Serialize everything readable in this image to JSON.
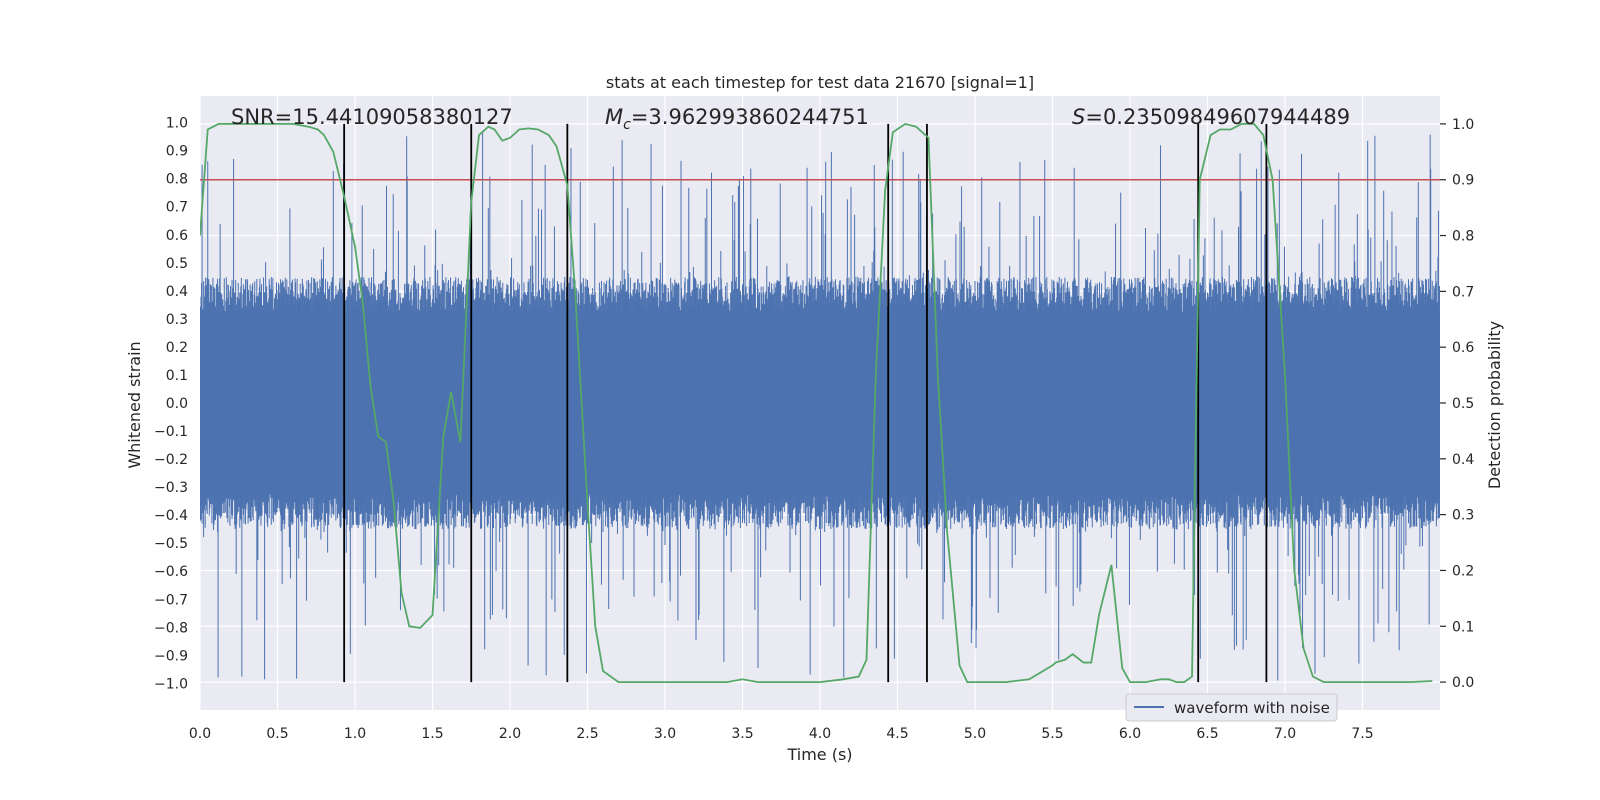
{
  "chart_data": {
    "type": "line",
    "title": "stats at each timestep for test data 21670 [signal=1]",
    "xlabel": "Time (s)",
    "ylabel": "Whitened strain",
    "y2label": "Detection probability",
    "xlim": [
      0,
      8
    ],
    "ylim": [
      -1.095,
      1.095
    ],
    "y2lim": [
      -0.05,
      1.05
    ],
    "x_ticks": [
      0.0,
      0.5,
      1.0,
      1.5,
      2.0,
      2.5,
      3.0,
      3.5,
      4.0,
      4.5,
      5.0,
      5.5,
      6.0,
      6.5,
      7.0,
      7.5
    ],
    "x_tick_labels": [
      "0.0",
      "0.5",
      "1.0",
      "1.5",
      "2.0",
      "2.5",
      "3.0",
      "3.5",
      "4.0",
      "4.5",
      "5.0",
      "5.5",
      "6.0",
      "6.5",
      "7.0",
      "7.5"
    ],
    "y_ticks": [
      -1.0,
      -0.9,
      -0.8,
      -0.7,
      -0.6,
      -0.5,
      -0.4,
      -0.3,
      -0.2,
      -0.1,
      0.0,
      0.1,
      0.2,
      0.3,
      0.4,
      0.5,
      0.6,
      0.7,
      0.8,
      0.9,
      1.0
    ],
    "y_tick_labels": [
      "−1.0",
      "−0.9",
      "−0.8",
      "−0.7",
      "−0.6",
      "−0.5",
      "−0.4",
      "−0.3",
      "−0.2",
      "−0.1",
      "0.0",
      "0.1",
      "0.2",
      "0.3",
      "0.4",
      "0.5",
      "0.6",
      "0.7",
      "0.8",
      "0.9",
      "1.0"
    ],
    "y2_ticks": [
      0.0,
      0.1,
      0.2,
      0.3,
      0.4,
      0.5,
      0.6,
      0.7,
      0.8,
      0.9,
      1.0
    ],
    "y2_tick_labels": [
      "0.0",
      "0.1",
      "0.2",
      "0.3",
      "0.4",
      "0.5",
      "0.6",
      "0.7",
      "0.8",
      "0.9",
      "1.0"
    ],
    "grid": true,
    "legend": {
      "entries": [
        "waveform with noise"
      ],
      "placement": "lower-right"
    },
    "annotations": {
      "snr": "SNR=15.44109058380127",
      "mc_symbol": "M",
      "mc_sub": "c",
      "mc_value": "=3.962993860244751",
      "s_symbol": "S",
      "s_value": "=0.23509849607944489"
    },
    "threshold": 0.9,
    "vertical_lines": [
      0.93,
      1.75,
      2.37,
      4.44,
      4.69,
      6.44,
      6.88
    ],
    "waveform": {
      "name": "waveform with noise",
      "duration": 8.0,
      "noise_envelope": [
        -0.45,
        0.45
      ],
      "spike_max": 0.97,
      "spike_min": -0.99
    },
    "probability": {
      "name": "detection probability",
      "x": [
        0.0,
        0.05,
        0.12,
        0.2,
        0.3,
        0.4,
        0.5,
        0.6,
        0.7,
        0.76,
        0.8,
        0.86,
        0.93,
        1.0,
        1.05,
        1.1,
        1.15,
        1.2,
        1.25,
        1.3,
        1.35,
        1.42,
        1.5,
        1.57,
        1.62,
        1.68,
        1.75,
        1.8,
        1.86,
        1.9,
        1.95,
        2.0,
        2.06,
        2.12,
        2.18,
        2.25,
        2.3,
        2.37,
        2.42,
        2.5,
        2.55,
        2.6,
        2.7,
        2.8,
        3.0,
        3.2,
        3.4,
        3.5,
        3.6,
        3.8,
        4.0,
        4.15,
        4.25,
        4.3,
        4.36,
        4.42,
        4.47,
        4.55,
        4.62,
        4.7,
        4.76,
        4.82,
        4.9,
        4.95,
        5.05,
        5.2,
        5.35,
        5.5,
        5.52,
        5.58,
        5.63,
        5.7,
        5.75,
        5.8,
        5.88,
        5.95,
        6.0,
        6.1,
        6.2,
        6.25,
        6.3,
        6.35,
        6.4,
        6.45,
        6.52,
        6.58,
        6.65,
        6.72,
        6.8,
        6.86,
        6.92,
        7.0,
        7.06,
        7.12,
        7.18,
        7.25,
        7.35,
        7.6,
        7.8,
        7.95
      ],
      "y": [
        0.8,
        0.99,
        1.0,
        1.0,
        1.0,
        1.0,
        1.0,
        1.0,
        0.995,
        0.99,
        0.98,
        0.95,
        0.87,
        0.78,
        0.68,
        0.53,
        0.44,
        0.43,
        0.32,
        0.16,
        0.1,
        0.097,
        0.12,
        0.44,
        0.52,
        0.43,
        0.86,
        0.98,
        0.995,
        0.99,
        0.97,
        0.975,
        0.99,
        0.992,
        0.99,
        0.98,
        0.96,
        0.89,
        0.7,
        0.32,
        0.1,
        0.02,
        0.0,
        0.0,
        0.0,
        0.0,
        0.0,
        0.005,
        0.0,
        0.0,
        0.0,
        0.005,
        0.01,
        0.04,
        0.55,
        0.88,
        0.985,
        1.0,
        0.995,
        0.975,
        0.55,
        0.27,
        0.03,
        0.0,
        0.0,
        0.0,
        0.005,
        0.03,
        0.035,
        0.04,
        0.05,
        0.035,
        0.035,
        0.12,
        0.21,
        0.025,
        0.0,
        0.0,
        0.005,
        0.005,
        0.0,
        0.0,
        0.01,
        0.9,
        0.98,
        0.99,
        0.99,
        1.0,
        1.0,
        0.98,
        0.9,
        0.55,
        0.2,
        0.06,
        0.01,
        0.0,
        0.0,
        0.0,
        0.0,
        0.002
      ]
    },
    "colors": {
      "background": "#eaeaf2",
      "grid": "#ffffff",
      "waveform": "#4c72b0",
      "probability": "#55a868",
      "threshold": "#c44e52",
      "vline": "#000000",
      "text": "#262626"
    }
  }
}
